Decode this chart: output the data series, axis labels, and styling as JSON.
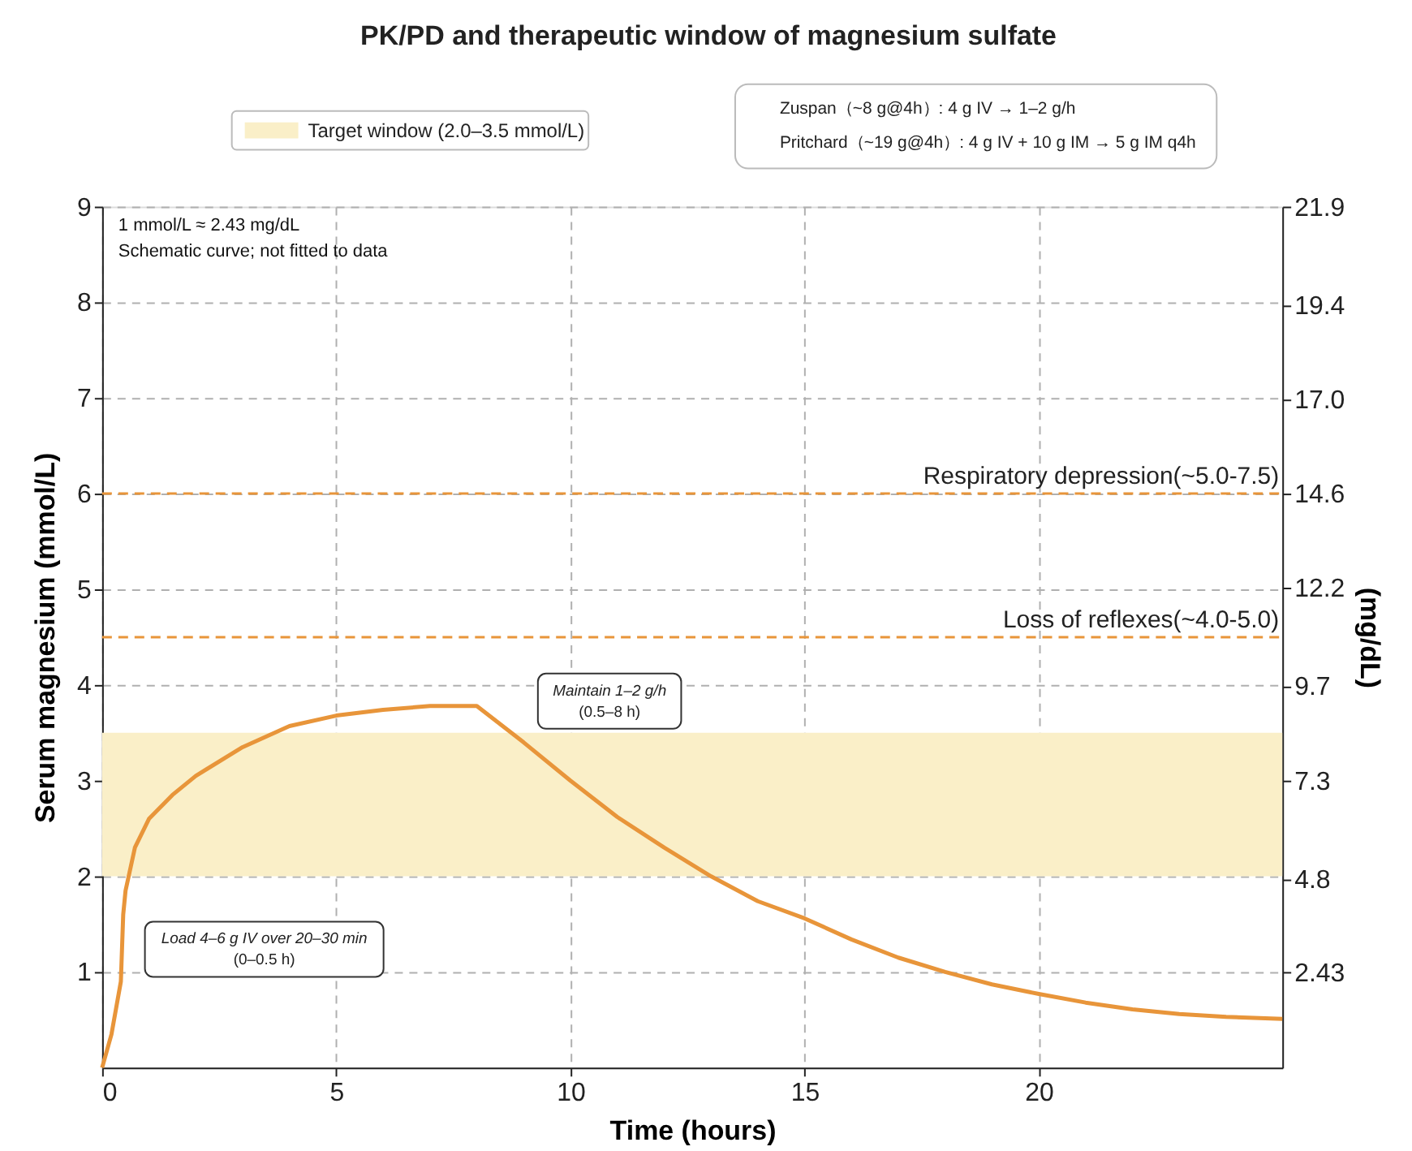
{
  "chart_data": {
    "type": "line",
    "title": "PK/PD and therapeutic window of magnesium sulfate",
    "xlabel": "Time (hours)",
    "ylabel": "Serum magnesium (mmol/L)",
    "y2label": "(mg/dL)",
    "x": [
      0,
      0.2,
      0.4,
      0.45,
      0.5,
      0.7,
      1,
      1.5,
      2,
      3,
      4,
      5,
      6,
      7,
      8,
      9,
      10,
      11,
      12,
      13,
      14,
      15,
      16,
      17,
      18,
      19,
      20,
      21,
      22,
      23,
      24,
      25.2
    ],
    "series": [
      {
        "color": "#e8953a",
        "values": [
          0,
          0.35,
          0.9,
          1.6,
          1.85,
          2.3,
          2.6,
          2.85,
          3.05,
          3.35,
          3.57,
          3.68,
          3.74,
          3.78,
          3.78,
          3.4,
          3.0,
          2.62,
          2.3,
          2.0,
          1.74,
          1.56,
          1.34,
          1.15,
          1.0,
          0.87,
          0.77,
          0.68,
          0.61,
          0.56,
          0.53,
          0.51
        ]
      }
    ],
    "xlim": [
      0,
      25.2
    ],
    "xticks": [
      0,
      5,
      10,
      15,
      20
    ],
    "ylim": [
      0,
      9
    ],
    "yticks": [
      1,
      2,
      3,
      4,
      5,
      6,
      7,
      8,
      9
    ],
    "y2lim": [
      0,
      21.9
    ],
    "y2ticks": [
      2.43,
      4.8,
      7.3,
      9.7,
      12.2,
      14.6,
      {
        "value": 17,
        "label": "17.0"
      },
      19.4,
      21.9
    ],
    "ref_lines": [
      {
        "axis": "y",
        "value": 6,
        "label": "Respiratory depression(~5.0-7.5)",
        "color": "#e8953a",
        "line_style": "dashed"
      },
      {
        "axis": "y",
        "value": 4.5,
        "label": "Loss of reflexes(~4.0-5.0)",
        "color": "#e8953a",
        "line_style": "dashed"
      }
    ],
    "bands": [
      {
        "axis": "y",
        "from": 2.0,
        "to": 3.5,
        "label": "Target window (2.0–3.5 mmol/L)",
        "color": "#faefc8"
      }
    ],
    "annotations": [
      "1 mmol/L ≈ 2.43 mg/dL",
      "Schematic curve; not fitted to data",
      "Zuspan（~8 g@4h）: 4 g IV → 1–2 g/h",
      "Pritchard（~19 g@4h）: 4 g IV + 10 g IM → 5 g IM q4h",
      "Load 4–6 g IV over 20–30 min\n(0–0.5 h)",
      "Maintain 1–2 g/h\n(0.5–8 h)"
    ],
    "grid": true,
    "legend": "top",
    "line_style": "solid",
    "marker": "none"
  }
}
